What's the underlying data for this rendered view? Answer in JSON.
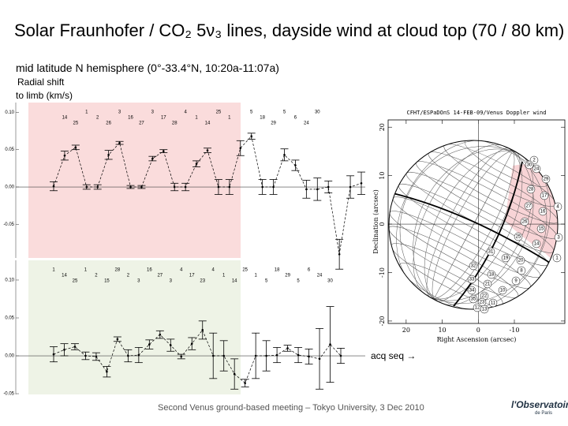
{
  "title": "Solar Fraunhofer / CO₂ 5ν₃ lines, dayside wind at cloud top (70 / 80 km)",
  "subtitle": "mid latitude N hemisphere (0°-33.4°N, 10:20a-11:07a)",
  "y_label_1": "Radial shift",
  "y_label_2": "to limb (km/s)",
  "x_note": "acq seq →",
  "footer": "Second Venus ground-based meeting – Tokyo University, 3 Dec 2010",
  "logo": {
    "name": "l'Observatoire",
    "place": "de Paris"
  },
  "chart_data": [
    {
      "type": "errorbar",
      "color": "#000000",
      "shade": "#fadcdc",
      "categories": [
        null,
        null,
        null,
        null,
        null,
        null,
        null,
        null,
        null,
        null,
        null,
        null,
        null,
        null,
        null,
        null,
        null,
        null,
        null,
        null,
        null,
        null,
        null,
        null,
        null,
        null,
        null,
        null,
        null
      ],
      "values": [
        0.001,
        0.042,
        0.053,
        0.0,
        0.0,
        0.043,
        0.059,
        0.0,
        0.0,
        0.038,
        0.048,
        0.0,
        0.0,
        0.031,
        0.049,
        0.0,
        0.0,
        0.052,
        0.068,
        0.0,
        0.0,
        0.043,
        0.029,
        -0.003,
        -0.003,
        0.0,
        -0.09,
        0.0,
        0.005
      ],
      "errors": [
        0.006,
        0.006,
        0.003,
        0.003,
        0.003,
        0.006,
        0.002,
        0.002,
        0.002,
        0.003,
        0.002,
        0.005,
        0.005,
        0.004,
        0.003,
        0.01,
        0.01,
        0.01,
        0.004,
        0.01,
        0.01,
        0.008,
        0.007,
        0.012,
        0.015,
        0.008,
        0.02,
        0.015,
        0.015
      ],
      "point_labels": [
        null,
        "14",
        "25",
        "1",
        "2",
        "26",
        "3",
        "16",
        "27",
        "3",
        "17",
        "28",
        "4",
        "1",
        "14",
        "25",
        "1",
        null,
        "5",
        "18",
        "29",
        "5",
        "6",
        "24",
        "30",
        null,
        null,
        null,
        null
      ],
      "ylim": [
        -0.095,
        0.113
      ],
      "yticks": [
        {
          "value": 0.1,
          "label": "0.10"
        },
        {
          "value": 0.05,
          "label": "0.05"
        },
        {
          "value": 0,
          "label": "0.00"
        },
        {
          "value": -0.05,
          "label": "-0.05"
        }
      ]
    },
    {
      "type": "errorbar",
      "color": "#000000",
      "shade": "#eef3e6",
      "categories": [
        null,
        null,
        null,
        null,
        null,
        null,
        null,
        null,
        null,
        null,
        null,
        null,
        null,
        null,
        null,
        null,
        null,
        null,
        null,
        null,
        null,
        null,
        null,
        null,
        null,
        null,
        null,
        null
      ],
      "values": [
        0.002,
        0.008,
        0.012,
        0.0,
        -0.001,
        -0.021,
        0.022,
        0.0,
        0.001,
        0.015,
        0.028,
        0.014,
        -0.001,
        0.016,
        0.034,
        0.0,
        0.0,
        -0.024,
        -0.036,
        0.0,
        0.0,
        0.001,
        0.01,
        0.001,
        -0.001,
        -0.004,
        0.015,
        0.0
      ],
      "errors": [
        0.01,
        0.008,
        0.004,
        0.005,
        0.005,
        0.007,
        0.003,
        0.008,
        0.01,
        0.006,
        0.005,
        0.008,
        0.003,
        0.008,
        0.012,
        0.03,
        0.02,
        0.02,
        0.005,
        0.03,
        0.02,
        0.01,
        0.004,
        0.01,
        0.01,
        0.04,
        0.05,
        0.01
      ],
      "point_labels": [
        "1",
        "14",
        "25",
        "1",
        "2",
        "15",
        "28",
        "2",
        "3",
        "16",
        "27",
        "3",
        "4",
        "17",
        "23",
        "4",
        "1",
        "14",
        "25",
        "1",
        "5",
        "18",
        "29",
        "5",
        "6",
        "24",
        "30",
        null
      ],
      "ylim": [
        -0.051,
        0.126
      ],
      "yticks": [
        {
          "value": 0.1,
          "label": "0.10"
        },
        {
          "value": 0.05,
          "label": "0.05"
        },
        {
          "value": 0,
          "label": "0.00"
        },
        {
          "value": -0.05,
          "label": "-0.05"
        }
      ]
    },
    {
      "type": "globe",
      "title": "CFHT/ESPaDOnS 14-FEB-09/Venus Doppler wind",
      "xlabel": "Right Ascension (arcsec)",
      "ylabel": "Declination (arcsec)",
      "xlim": [
        25,
        -24
      ],
      "ylim": [
        -20.5,
        21.5
      ],
      "xticks": [
        20,
        10,
        0,
        -10
      ],
      "yticks": [
        -20,
        -10,
        0,
        10,
        20
      ],
      "shade": "#f6c9cc",
      "cell_labels": [
        "2",
        "30",
        "24",
        "29",
        "28",
        "17",
        "16",
        "27",
        "4",
        "26",
        "15",
        "3",
        "25",
        "14",
        "1",
        "31",
        "19",
        "20",
        "8",
        "32",
        "18",
        "9",
        "33",
        "21",
        "10",
        "34",
        "22",
        "35",
        "23",
        "11",
        "12",
        "13"
      ]
    }
  ]
}
